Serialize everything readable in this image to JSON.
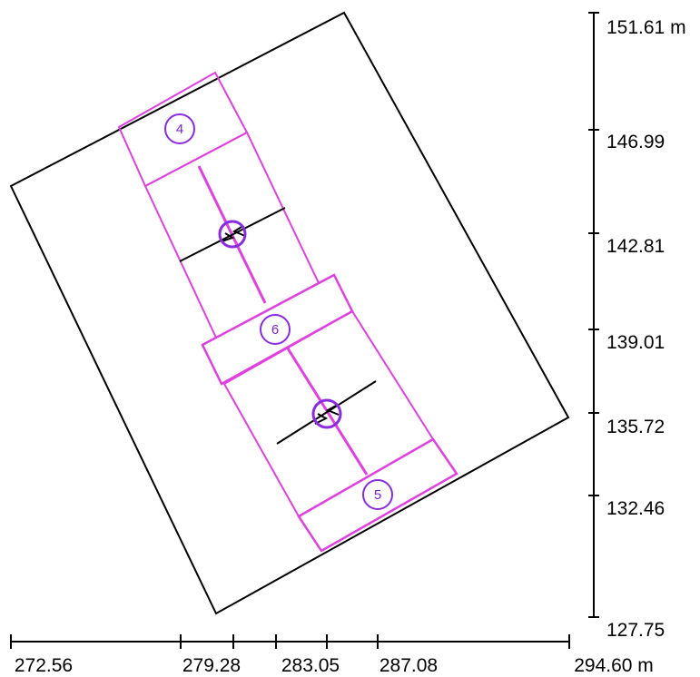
{
  "colors": {
    "background": "#ffffff",
    "outline": "#000000",
    "elements": "#e040e0",
    "markers": "#8a2be2",
    "labels": "#7a22d8"
  },
  "markers": {
    "m4": "4",
    "m6": "6",
    "m5": "5"
  },
  "axes": {
    "x": {
      "unit": "m",
      "ticks": [
        "272.56",
        "279.28",
        "283.05",
        "287.08",
        "294.60 m"
      ]
    },
    "y": {
      "unit": "m",
      "ticks": [
        "151.61 m",
        "146.99",
        "142.81",
        "139.01",
        "135.72",
        "132.46",
        "127.75"
      ]
    }
  }
}
